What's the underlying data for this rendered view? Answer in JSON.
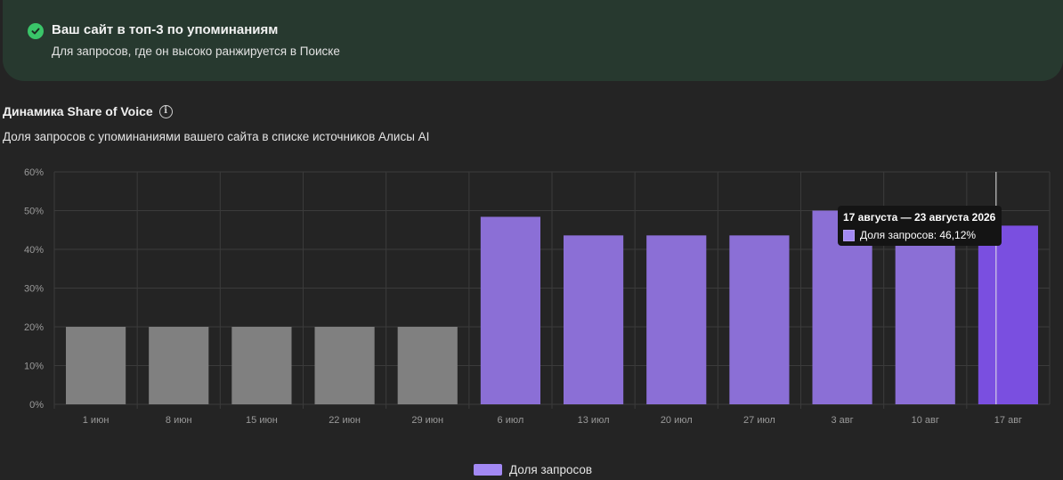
{
  "banner": {
    "title": "Ваш сайт в топ-3 по упоминаниям",
    "subtitle": "Для запросов, где он высоко ранжируется в Поиске",
    "icon": "check-circle-icon",
    "accent": "#3ac569"
  },
  "section": {
    "title": "Динамика Share of Voice",
    "subtitle": "Доля запросов с упоминаниями вашего сайта в списке источников Алисы AI",
    "info_icon": "info-icon"
  },
  "tooltip": {
    "title": "17 августа — 23 августа 2026",
    "series_label": "Доля запросов: 46,12%"
  },
  "legend": {
    "label": "Доля запросов"
  },
  "chart_data": {
    "type": "bar",
    "categories": [
      "1 июн",
      "8 июн",
      "15 июн",
      "22 июн",
      "29 июн",
      "6 июл",
      "13 июл",
      "20 июл",
      "27 июл",
      "3 авг",
      "10 авг",
      "17 авг"
    ],
    "values": [
      20,
      20,
      20,
      20,
      20,
      48.4,
      43.6,
      43.6,
      43.6,
      50,
      50,
      46.12
    ],
    "yticks": [
      "0%",
      "10%",
      "20%",
      "30%",
      "40%",
      "50%",
      "60%"
    ],
    "ylim": [
      0,
      60
    ],
    "grid": true,
    "legend_position": "bottom",
    "series": [
      {
        "name": "Доля запросов",
        "values": [
          20,
          20,
          20,
          20,
          20,
          48.4,
          43.6,
          43.6,
          43.6,
          50,
          50,
          46.12
        ]
      }
    ],
    "colors": {
      "inactive": "#808080",
      "bar": "#8b6fd6",
      "highlight": "#7a4fe0",
      "grid": "#3b3b3b",
      "legend": "#a389f4"
    },
    "inactive_count": 5,
    "highlight_index": 11
  }
}
